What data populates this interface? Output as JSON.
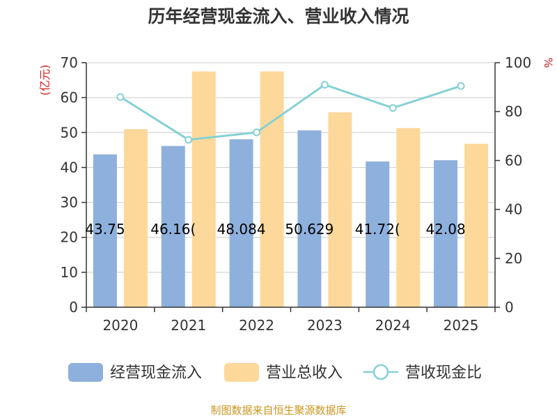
{
  "chart_data": {
    "type": "bar",
    "title": "历年经营现金流入、营业收入情况",
    "categories": [
      "2020",
      "2021",
      "2022",
      "2023",
      "2024",
      "2025"
    ],
    "series": [
      {
        "name": "经营现金流入",
        "kind": "bar",
        "axis": "left",
        "color": "#8eb0dc",
        "values": [
          43.75,
          46.16,
          48.08,
          50.63,
          41.72,
          42.08
        ],
        "labels": [
          "43.75",
          "46.16(",
          "48.084",
          "50.629",
          "41.72(",
          "42.08"
        ]
      },
      {
        "name": "营业总收入",
        "kind": "bar",
        "axis": "left",
        "color": "#fdd89b",
        "values": [
          51.0,
          67.5,
          67.5,
          55.8,
          51.3,
          46.8
        ]
      },
      {
        "name": "营收现金比",
        "kind": "line",
        "axis": "right",
        "color": "#85d1d4",
        "values": [
          86,
          68.5,
          71.5,
          91,
          81.5,
          90.5
        ]
      }
    ],
    "ylabel_left": "(亿元)",
    "ylabel_right": "%",
    "ylim_left": [
      0,
      70
    ],
    "yticks_left": [
      0,
      10,
      20,
      30,
      40,
      50,
      60,
      70
    ],
    "ylim_right": [
      0,
      100
    ],
    "yticks_right": [
      0,
      20,
      40,
      60,
      80,
      100
    ],
    "grid": true,
    "legend_position": "bottom"
  },
  "source_text": "制图数据来自恒生聚源数据库",
  "colors": {
    "title": "#333333",
    "axis": "#333333",
    "grid": "#cccccc",
    "axis_unit": "#d22020",
    "source": "#c8961e"
  }
}
